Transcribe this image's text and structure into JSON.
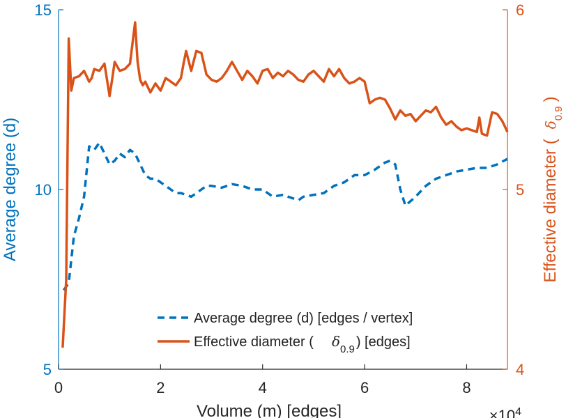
{
  "chart_data": {
    "type": "line",
    "xlabel": "Volume (m) [edges]",
    "x_multiplier": "×10",
    "x_multiplier_exponent": "4",
    "xlim": [
      0,
      8.8
    ],
    "xticks": [
      0,
      2,
      4,
      6,
      8
    ],
    "ylabel_left": "Average degree (d)",
    "ylim_left": [
      5,
      15
    ],
    "yticks_left": [
      5,
      10,
      15
    ],
    "ylabel_right_prefix": "Effective diameter (",
    "ylabel_right_symbol": "δ",
    "ylabel_right_sub": "0.9",
    "ylabel_right_suffix": ")",
    "ylim_right": [
      4,
      6
    ],
    "yticks_right": [
      4,
      5,
      6
    ],
    "legend": {
      "position": "bottom-center",
      "entries": [
        {
          "label": "Average degree (d) [edges / vertex]"
        },
        {
          "label_prefix": "Effective diameter (",
          "symbol": "δ",
          "sub": "0.9",
          "label_suffix": ") [edges]"
        }
      ]
    },
    "series": [
      {
        "name": "Average degree (d) [edges / vertex]",
        "axis": "left",
        "style": "dashed",
        "color": "#0072BD",
        "x": [
          0.1,
          0.2,
          0.3,
          0.4,
          0.5,
          0.6,
          0.7,
          0.8,
          0.9,
          1.0,
          1.1,
          1.2,
          1.3,
          1.4,
          1.5,
          1.6,
          1.7,
          1.8,
          1.9,
          2.0,
          2.1,
          2.2,
          2.3,
          2.4,
          2.5,
          2.6,
          2.7,
          2.8,
          2.9,
          3.0,
          3.2,
          3.4,
          3.6,
          3.8,
          4.0,
          4.2,
          4.4,
          4.6,
          4.7,
          4.8,
          5.0,
          5.2,
          5.4,
          5.6,
          5.8,
          6.0,
          6.2,
          6.4,
          6.5,
          6.6,
          6.7,
          6.8,
          7.0,
          7.2,
          7.4,
          7.6,
          7.8,
          8.0,
          8.2,
          8.4,
          8.6,
          8.8
        ],
        "values": [
          7.2,
          7.4,
          8.7,
          9.2,
          9.8,
          11.2,
          11.1,
          11.3,
          11.0,
          10.7,
          10.8,
          11.0,
          10.9,
          11.1,
          11.0,
          10.7,
          10.4,
          10.3,
          10.3,
          10.2,
          10.1,
          10.0,
          9.9,
          9.9,
          9.85,
          9.8,
          9.9,
          10.0,
          10.1,
          10.1,
          10.05,
          10.15,
          10.1,
          10.0,
          10.0,
          9.8,
          9.85,
          9.75,
          9.7,
          9.8,
          9.85,
          9.9,
          10.1,
          10.2,
          10.4,
          10.4,
          10.55,
          10.75,
          10.8,
          10.7,
          10.0,
          9.55,
          9.8,
          10.1,
          10.3,
          10.4,
          10.5,
          10.55,
          10.6,
          10.6,
          10.7,
          10.85
        ]
      },
      {
        "name": "Effective diameter (δ0.9) [edges]",
        "axis": "right",
        "style": "solid",
        "color": "#D95319",
        "x": [
          0.08,
          0.15,
          0.2,
          0.25,
          0.3,
          0.4,
          0.5,
          0.6,
          0.65,
          0.7,
          0.8,
          0.9,
          1.0,
          1.05,
          1.1,
          1.2,
          1.3,
          1.4,
          1.5,
          1.55,
          1.6,
          1.65,
          1.7,
          1.8,
          1.9,
          2.0,
          2.1,
          2.2,
          2.3,
          2.4,
          2.45,
          2.5,
          2.6,
          2.7,
          2.8,
          2.9,
          3.0,
          3.1,
          3.2,
          3.3,
          3.4,
          3.5,
          3.6,
          3.7,
          3.8,
          3.9,
          4.0,
          4.1,
          4.2,
          4.3,
          4.4,
          4.5,
          4.6,
          4.7,
          4.8,
          4.9,
          5.0,
          5.1,
          5.2,
          5.3,
          5.4,
          5.5,
          5.6,
          5.7,
          5.8,
          5.9,
          6.0,
          6.1,
          6.2,
          6.3,
          6.4,
          6.5,
          6.6,
          6.7,
          6.8,
          6.9,
          7.0,
          7.1,
          7.2,
          7.3,
          7.4,
          7.5,
          7.6,
          7.7,
          7.8,
          7.9,
          8.0,
          8.1,
          8.2,
          8.25,
          8.3,
          8.4,
          8.5,
          8.6,
          8.7,
          8.8
        ],
        "values": [
          4.12,
          4.5,
          5.84,
          5.55,
          5.62,
          5.63,
          5.66,
          5.6,
          5.62,
          5.67,
          5.66,
          5.7,
          5.52,
          5.61,
          5.71,
          5.66,
          5.67,
          5.7,
          5.93,
          5.71,
          5.61,
          5.58,
          5.6,
          5.54,
          5.59,
          5.55,
          5.62,
          5.6,
          5.58,
          5.62,
          5.7,
          5.77,
          5.66,
          5.77,
          5.76,
          5.64,
          5.61,
          5.6,
          5.62,
          5.66,
          5.71,
          5.66,
          5.61,
          5.66,
          5.63,
          5.59,
          5.66,
          5.67,
          5.62,
          5.65,
          5.63,
          5.66,
          5.64,
          5.61,
          5.6,
          5.64,
          5.66,
          5.63,
          5.6,
          5.67,
          5.63,
          5.67,
          5.62,
          5.59,
          5.6,
          5.62,
          5.6,
          5.48,
          5.5,
          5.51,
          5.5,
          5.45,
          5.39,
          5.44,
          5.41,
          5.42,
          5.38,
          5.41,
          5.44,
          5.43,
          5.46,
          5.4,
          5.36,
          5.38,
          5.35,
          5.33,
          5.34,
          5.33,
          5.32,
          5.4,
          5.31,
          5.3,
          5.43,
          5.42,
          5.38,
          5.32
        ]
      }
    ]
  },
  "colors": {
    "left_axis": "#0072BD",
    "right_axis": "#D95319",
    "bottom_axis": "#262626"
  }
}
